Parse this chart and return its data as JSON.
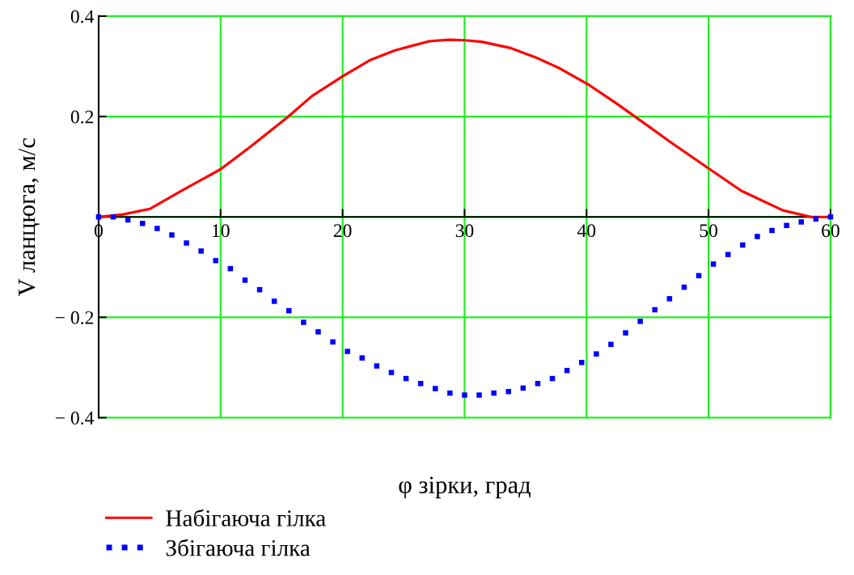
{
  "chart_data": {
    "type": "line",
    "xlabel": "φ зірки, град",
    "ylabel": "V ланцюга, м/с",
    "xlim": [
      0,
      60
    ],
    "ylim": [
      -0.4,
      0.4
    ],
    "xticks": [
      0,
      10,
      20,
      30,
      40,
      50,
      60
    ],
    "yticks": [
      {
        "value": -0.4,
        "label": "− 0.4"
      },
      {
        "value": -0.2,
        "label": "− 0.2"
      },
      {
        "value": 0,
        "label": null
      },
      0.2,
      0.4
    ],
    "grid": true,
    "legend": "bottom left",
    "series": [
      {
        "name": "Набігаюча гілка",
        "color": "#ff0000",
        "line_style": "solid",
        "x": [
          0,
          2.0,
          4.2,
          7.0,
          10.0,
          12.5,
          15.5,
          17.5,
          20.0,
          22.3,
          24.3,
          27.1,
          28.7,
          30.0,
          31.4,
          33.7,
          36.0,
          37.8,
          40.2,
          42.4,
          44.2,
          47.0,
          50.1,
          52.7,
          56.1,
          58.4,
          60
        ],
        "values": [
          0,
          0.005,
          0.016,
          0.055,
          0.095,
          0.141,
          0.199,
          0.241,
          0.28,
          0.313,
          0.332,
          0.35,
          0.353,
          0.352,
          0.349,
          0.337,
          0.316,
          0.296,
          0.263,
          0.227,
          0.196,
          0.147,
          0.095,
          0.052,
          0.013,
          0,
          0
        ]
      },
      {
        "name": "Збігаюча гілка",
        "type": "scatter",
        "color": "#0000ff",
        "marker": "square",
        "x": [
          0,
          1.2,
          2.4,
          3.6,
          4.8,
          6.0,
          7.2,
          8.4,
          9.6,
          10.8,
          12.0,
          13.2,
          14.4,
          15.6,
          16.8,
          18.0,
          19.2,
          20.4,
          21.6,
          22.8,
          24.0,
          25.2,
          26.4,
          27.6,
          28.8,
          30.0,
          31.2,
          32.4,
          33.6,
          34.8,
          36.0,
          37.2,
          38.4,
          39.6,
          40.8,
          42.0,
          43.2,
          44.4,
          45.6,
          46.8,
          48.0,
          49.2,
          50.4,
          51.6,
          52.8,
          54.0,
          55.2,
          56.4,
          57.6,
          58.8,
          60.0
        ],
        "values": [
          0,
          0,
          -0.006,
          -0.013,
          -0.023,
          -0.036,
          -0.052,
          -0.068,
          -0.087,
          -0.103,
          -0.126,
          -0.145,
          -0.168,
          -0.187,
          -0.21,
          -0.229,
          -0.249,
          -0.268,
          -0.281,
          -0.297,
          -0.31,
          -0.322,
          -0.332,
          -0.342,
          -0.351,
          -0.355,
          -0.355,
          -0.351,
          -0.348,
          -0.341,
          -0.332,
          -0.322,
          -0.306,
          -0.29,
          -0.273,
          -0.254,
          -0.231,
          -0.208,
          -0.185,
          -0.163,
          -0.14,
          -0.117,
          -0.094,
          -0.075,
          -0.056,
          -0.039,
          -0.027,
          -0.017,
          -0.01,
          -0.004,
          0
        ]
      }
    ]
  }
}
